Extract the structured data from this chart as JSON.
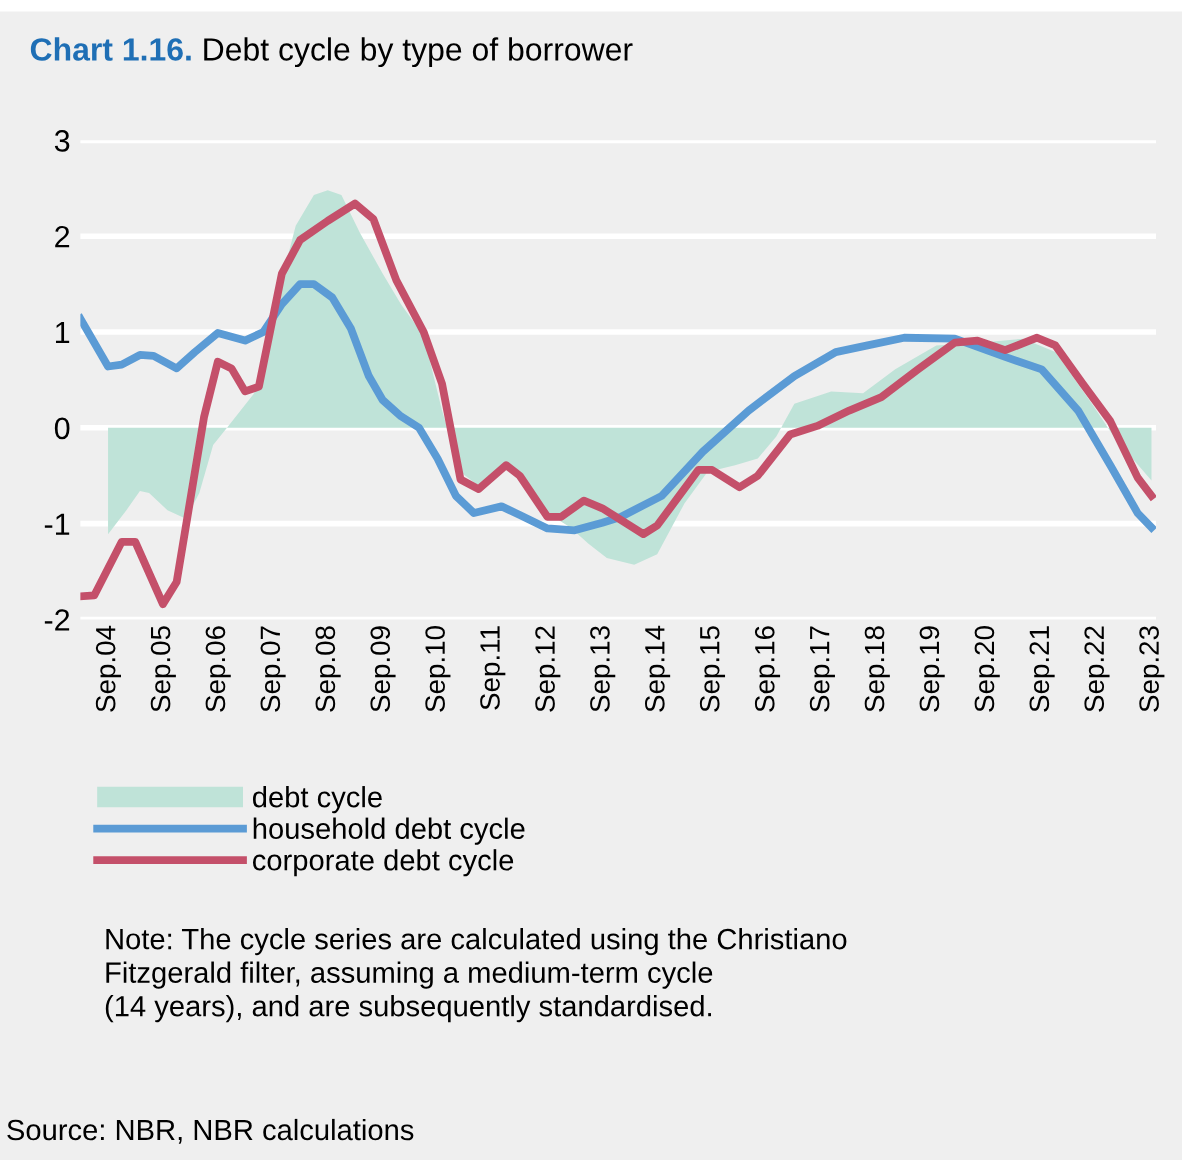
{
  "chart_data": {
    "type": "line",
    "title": "Chart 1.16. Debt cycle by type of borrower",
    "ylim": [
      -2,
      3
    ],
    "yticks": [
      -2,
      -1,
      0,
      1,
      2,
      3
    ],
    "xlim": [
      "2004-03",
      "2023-10"
    ],
    "xticks": [
      {
        "value": "2004-09",
        "label": "Sep.04"
      },
      {
        "value": "2005-09",
        "label": "Sep.05"
      },
      {
        "value": "2006-09",
        "label": "Sep.06"
      },
      {
        "value": "2007-09",
        "label": "Sep.07"
      },
      {
        "value": "2008-09",
        "label": "Sep.08"
      },
      {
        "value": "2009-09",
        "label": "Sep.09"
      },
      {
        "value": "2010-09",
        "label": "Sep.10"
      },
      {
        "value": "2011-09",
        "label": "Sep.11"
      },
      {
        "value": "2012-09",
        "label": "Sep.12"
      },
      {
        "value": "2013-09",
        "label": "Sep.13"
      },
      {
        "value": "2014-09",
        "label": "Sep.14"
      },
      {
        "value": "2015-09",
        "label": "Sep.15"
      },
      {
        "value": "2016-09",
        "label": "Sep.16"
      },
      {
        "value": "2017-09",
        "label": "Sep.17"
      },
      {
        "value": "2018-09",
        "label": "Sep.18"
      },
      {
        "value": "2019-09",
        "label": "Sep.19"
      },
      {
        "value": "2020-09",
        "label": "Sep.20"
      },
      {
        "value": "2021-09",
        "label": "Sep.21"
      },
      {
        "value": "2022-09",
        "label": "Sep.22"
      },
      {
        "value": "2023-09",
        "label": "Sep.23"
      }
    ],
    "grid": "y",
    "legend": "bottom",
    "line_style": "solid",
    "series": [
      {
        "name": "debt cycle",
        "type": "area",
        "color": "#bfe3d8",
        "x": [
          "2004-09",
          "2005-01",
          "2005-04",
          "2005-06",
          "2005-10",
          "2006-02",
          "2006-05",
          "2006-08",
          "2006-11",
          "2007-05",
          "2007-09",
          "2008-02",
          "2008-06",
          "2008-09",
          "2008-12",
          "2009-04",
          "2009-09",
          "2010-01",
          "2010-06",
          "2010-10",
          "2011-02",
          "2011-07",
          "2011-12",
          "2012-03",
          "2012-09",
          "2013-02",
          "2013-06",
          "2013-10",
          "2014-04",
          "2014-09",
          "2015-03",
          "2015-08",
          "2016-02",
          "2016-07",
          "2016-11",
          "2017-03",
          "2017-11",
          "2018-06",
          "2019-01",
          "2019-10",
          "2020-08",
          "2021-05",
          "2021-12",
          "2022-08",
          "2023-01",
          "2023-09"
        ],
        "values": [
          -1.11,
          -0.86,
          -0.66,
          -0.68,
          -0.86,
          -0.95,
          -0.68,
          -0.18,
          0.0,
          0.36,
          1.18,
          2.11,
          2.43,
          2.48,
          2.43,
          2.04,
          1.61,
          1.29,
          0.96,
          0.18,
          -0.46,
          -0.64,
          -0.39,
          -0.54,
          -0.89,
          -1.04,
          -1.21,
          -1.36,
          -1.43,
          -1.32,
          -0.79,
          -0.46,
          -0.39,
          -0.32,
          -0.09,
          0.25,
          0.38,
          0.36,
          0.61,
          0.86,
          0.89,
          0.93,
          0.79,
          0.25,
          -0.11,
          -0.55
        ]
      },
      {
        "name": "household debt cycle",
        "color": "#5b9bd5",
        "x": [
          "2004-03",
          "2004-09",
          "2004-12",
          "2005-04",
          "2005-07",
          "2005-12",
          "2006-04",
          "2006-09",
          "2007-03",
          "2007-07",
          "2007-11",
          "2008-03",
          "2008-06",
          "2008-10",
          "2009-02",
          "2009-06",
          "2009-09",
          "2010-01",
          "2010-05",
          "2010-09",
          "2011-01",
          "2011-05",
          "2011-11",
          "2012-03",
          "2012-09",
          "2013-03",
          "2013-09",
          "2014-01",
          "2014-10",
          "2015-07",
          "2016-05",
          "2017-03",
          "2017-12",
          "2018-07",
          "2019-03",
          "2020-02",
          "2021-01",
          "2021-09",
          "2022-05",
          "2022-12",
          "2023-06",
          "2023-09"
        ],
        "values": [
          1.14,
          0.64,
          0.66,
          0.76,
          0.75,
          0.62,
          0.79,
          0.99,
          0.91,
          1.0,
          1.29,
          1.5,
          1.5,
          1.36,
          1.04,
          0.54,
          0.29,
          0.12,
          0.0,
          -0.32,
          -0.71,
          -0.89,
          -0.82,
          -0.91,
          -1.05,
          -1.07,
          -0.99,
          -0.93,
          -0.71,
          -0.25,
          0.18,
          0.54,
          0.79,
          0.86,
          0.94,
          0.93,
          0.74,
          0.61,
          0.18,
          -0.39,
          -0.89,
          -1.04
        ]
      },
      {
        "name": "corporate debt cycle",
        "color": "#c4506a",
        "x": [
          "2004-03",
          "2004-06",
          "2004-12",
          "2005-03",
          "2005-09",
          "2005-12",
          "2006-06",
          "2006-09",
          "2006-12",
          "2007-03",
          "2007-06",
          "2007-11",
          "2008-03",
          "2008-09",
          "2009-03",
          "2009-07",
          "2009-12",
          "2010-06",
          "2010-10",
          "2011-02",
          "2011-06",
          "2011-12",
          "2012-03",
          "2012-09",
          "2012-12",
          "2013-05",
          "2013-09",
          "2014-06",
          "2014-09",
          "2015-06",
          "2015-09",
          "2016-03",
          "2016-07",
          "2017-02",
          "2017-08",
          "2018-03",
          "2018-10",
          "2019-06",
          "2020-02",
          "2020-07",
          "2021-01",
          "2021-08",
          "2021-12",
          "2022-06",
          "2022-12",
          "2023-06",
          "2023-09"
        ],
        "values": [
          -1.76,
          -1.75,
          -1.19,
          -1.19,
          -1.84,
          -1.61,
          0.11,
          0.69,
          0.62,
          0.38,
          0.43,
          1.61,
          1.96,
          2.16,
          2.34,
          2.18,
          1.54,
          1.0,
          0.46,
          -0.54,
          -0.64,
          -0.39,
          -0.5,
          -0.93,
          -0.93,
          -0.76,
          -0.84,
          -1.11,
          -1.02,
          -0.44,
          -0.44,
          -0.62,
          -0.5,
          -0.07,
          0.02,
          0.18,
          0.32,
          0.61,
          0.89,
          0.91,
          0.81,
          0.94,
          0.86,
          0.46,
          0.07,
          -0.52,
          -0.71
        ]
      }
    ],
    "annotations": [
      "Note: The cycle series are calculated using the Christiano\nFitzgerald filter, assuming a medium-term cycle\n(14 years), and are subsequently standardised.",
      "Source: NBR, NBR calculations"
    ]
  }
}
